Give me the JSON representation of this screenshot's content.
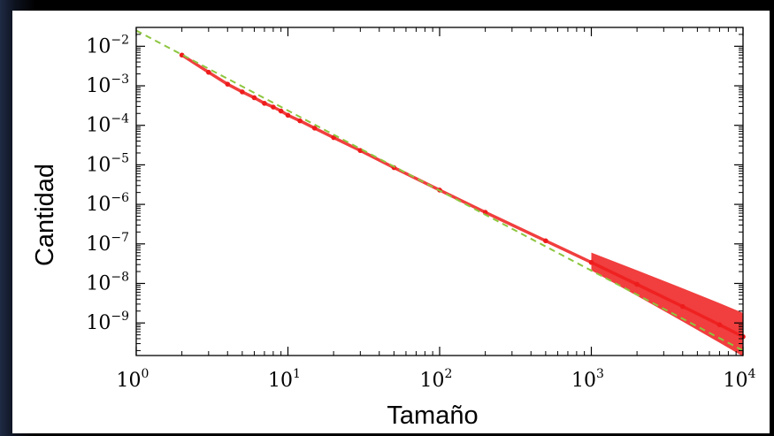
{
  "chart_data": {
    "type": "scatter",
    "title": "",
    "xlabel": "Tamaño",
    "ylabel": "Cantidad",
    "x_scale": "log",
    "y_scale": "log",
    "xlim": [
      1,
      10000
    ],
    "ylim": [
      1.5e-10,
      0.03
    ],
    "grid": false,
    "legend": "none",
    "x_ticks": [
      {
        "value": 1,
        "base": "10",
        "exp": "0"
      },
      {
        "value": 10,
        "base": "10",
        "exp": "1"
      },
      {
        "value": 100,
        "base": "10",
        "exp": "2"
      },
      {
        "value": 1000,
        "base": "10",
        "exp": "3"
      },
      {
        "value": 10000,
        "base": "10",
        "exp": "4"
      }
    ],
    "y_ticks": [
      {
        "value": 0.01,
        "base": "10",
        "exp": "−2"
      },
      {
        "value": 0.001,
        "base": "10",
        "exp": "−3"
      },
      {
        "value": 0.0001,
        "base": "10",
        "exp": "−4"
      },
      {
        "value": 1e-05,
        "base": "10",
        "exp": "−5"
      },
      {
        "value": 1e-06,
        "base": "10",
        "exp": "−6"
      },
      {
        "value": 1e-07,
        "base": "10",
        "exp": "−7"
      },
      {
        "value": 1e-08,
        "base": "10",
        "exp": "−8"
      },
      {
        "value": 1e-09,
        "base": "10",
        "exp": "−9"
      }
    ],
    "series": [
      {
        "kind": "points",
        "color": "#ee1c1c",
        "x": [
          2,
          3,
          4,
          5,
          6,
          7,
          8,
          9,
          10,
          12,
          15,
          20,
          30,
          50,
          100,
          200,
          500,
          1000,
          2000,
          4000,
          7000,
          10000
        ],
        "y": [
          0.006,
          0.0022,
          0.0011,
          0.0007,
          0.0005,
          0.00036,
          0.00029,
          0.00023,
          0.00018,
          0.00013,
          8.5e-05,
          4.9e-05,
          2.3e-05,
          8.5e-06,
          2.3e-06,
          6.3e-07,
          1.2e-07,
          3.4e-08,
          9.5e-09,
          2.6e-09,
          9e-10,
          4.5e-10
        ]
      },
      {
        "kind": "fit",
        "style": "dashed",
        "color": "#8dc63f",
        "x": [
          1,
          10000
        ],
        "y": [
          0.025,
          2e-10
        ]
      }
    ]
  }
}
